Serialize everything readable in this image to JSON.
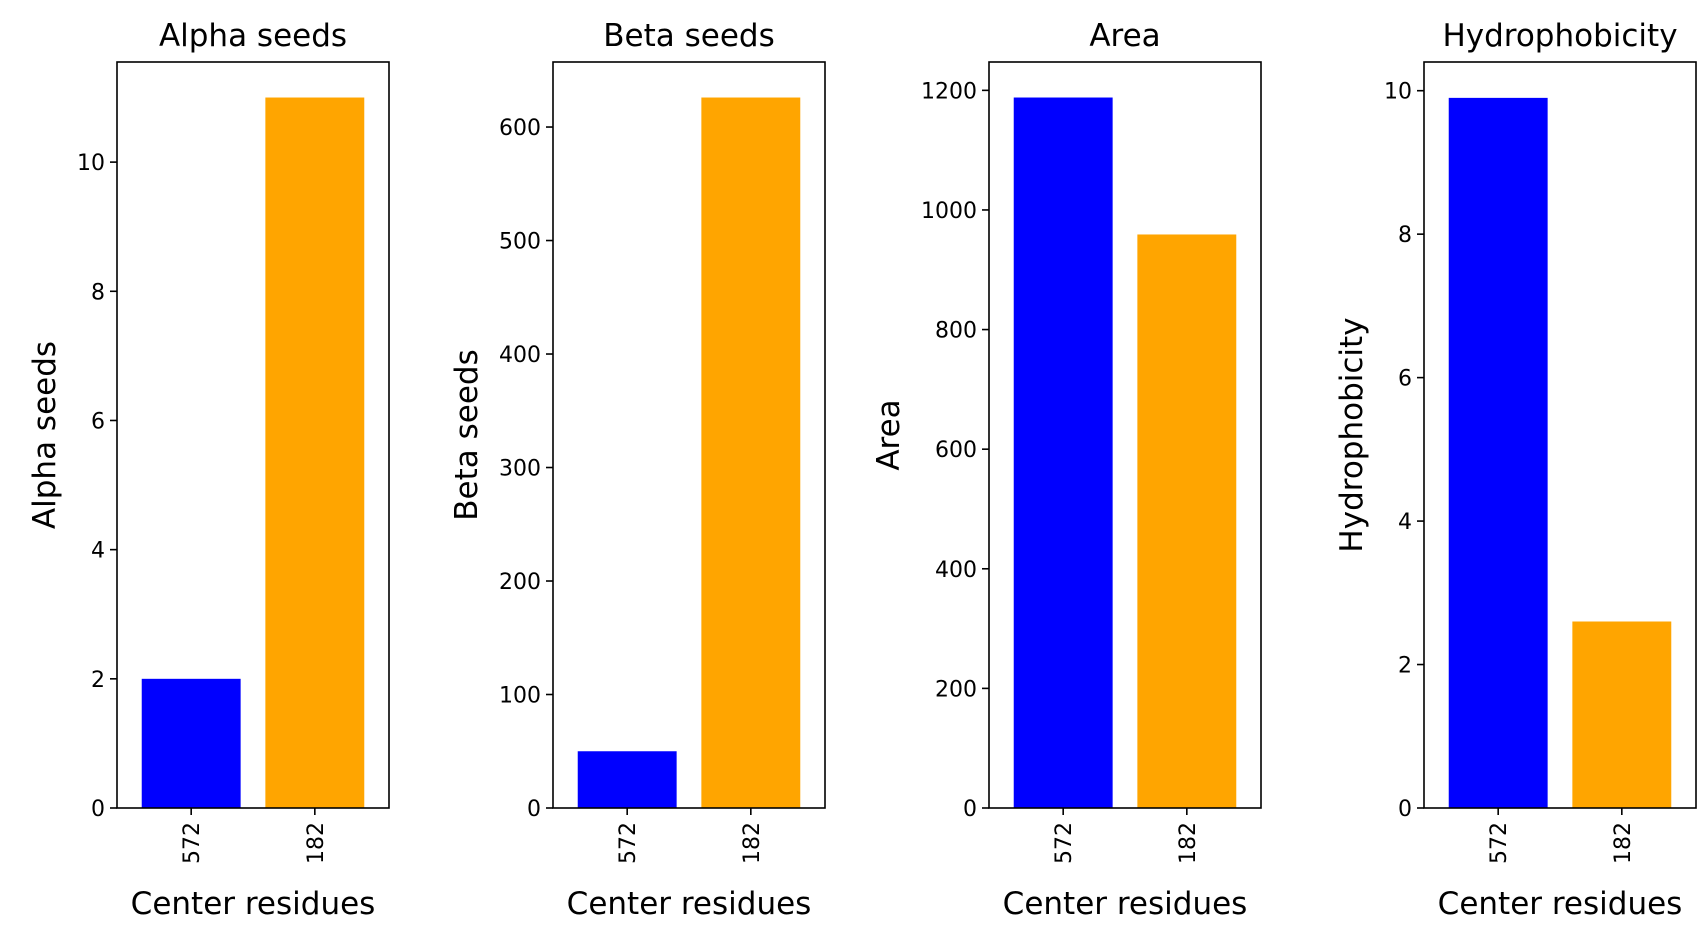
{
  "chart_data": [
    {
      "type": "bar",
      "title": "Alpha seeds",
      "xlabel": "Center residues",
      "ylabel": "Alpha seeds",
      "categories": [
        "572",
        "182"
      ],
      "values": [
        2,
        11
      ],
      "colors": [
        "#0000ff",
        "#ffa500"
      ],
      "yticks": [
        0,
        2,
        4,
        6,
        8,
        10
      ],
      "ylim": [
        0,
        11.55
      ],
      "grid": false,
      "legend": false
    },
    {
      "type": "bar",
      "title": "Beta seeds",
      "xlabel": "Center residues",
      "ylabel": "Beta seeds",
      "categories": [
        "572",
        "182"
      ],
      "values": [
        50,
        626
      ],
      "colors": [
        "#0000ff",
        "#ffa500"
      ],
      "yticks": [
        0,
        100,
        200,
        300,
        400,
        500,
        600
      ],
      "ylim": [
        0,
        657.3
      ],
      "grid": false,
      "legend": false
    },
    {
      "type": "bar",
      "title": "Area",
      "xlabel": "Center residues",
      "ylabel": "Area",
      "categories": [
        "572",
        "182"
      ],
      "values": [
        1188,
        959
      ],
      "colors": [
        "#0000ff",
        "#ffa500"
      ],
      "yticks": [
        0,
        200,
        400,
        600,
        800,
        1000,
        1200
      ],
      "ylim": [
        0,
        1247.4
      ],
      "grid": false,
      "legend": false
    },
    {
      "type": "bar",
      "title": "Hydrophobicity",
      "xlabel": "Center residues",
      "ylabel": "Hydrophobicity",
      "categories": [
        "572",
        "182"
      ],
      "values": [
        9.9,
        2.6
      ],
      "colors": [
        "#0000ff",
        "#ffa500"
      ],
      "yticks": [
        0,
        2,
        4,
        6,
        8,
        10
      ],
      "ylim": [
        0,
        10.4
      ],
      "grid": false,
      "legend": false
    }
  ]
}
